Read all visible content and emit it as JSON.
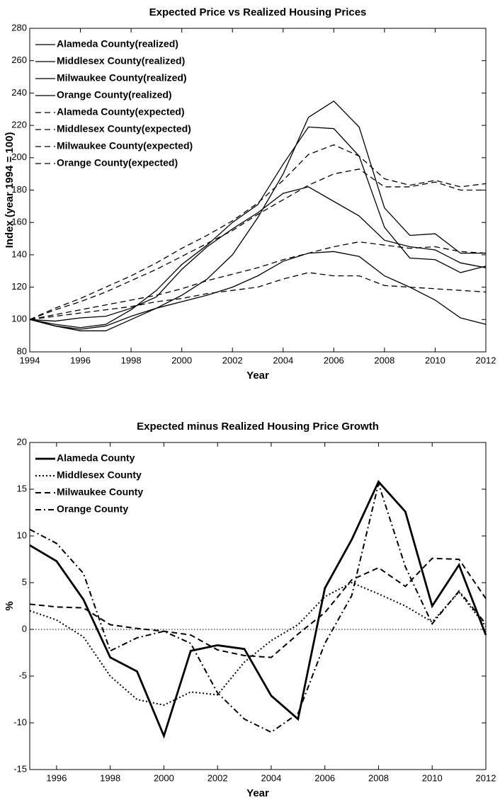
{
  "chart_data": [
    {
      "type": "line",
      "title": "Expected Price vs Realized Housing Prices",
      "xlabel": "Year",
      "ylabel": "Index (year 1994 = 100)",
      "x": [
        1994,
        1995,
        1996,
        1997,
        1998,
        1999,
        2000,
        2001,
        2002,
        2003,
        2004,
        2005,
        2006,
        2007,
        2008,
        2009,
        2010,
        2011,
        2012
      ],
      "xlim": [
        1994,
        2012
      ],
      "xticks": [
        1994,
        1996,
        1998,
        2000,
        2002,
        2004,
        2006,
        2008,
        2010,
        2012
      ],
      "ylim": [
        80,
        280
      ],
      "yticks": [
        80,
        100,
        120,
        140,
        160,
        180,
        200,
        220,
        240,
        260,
        280
      ],
      "legend": "upper left",
      "series": [
        {
          "name": "Alameda County(realized)",
          "color": "#000000",
          "dash": "solid",
          "values": [
            100,
            97,
            95,
            97,
            106,
            118,
            134,
            146,
            160,
            171,
            196,
            219,
            218,
            201,
            157,
            138,
            137,
            129,
            133
          ]
        },
        {
          "name": "Middlesex County(realized)",
          "color": "#000000",
          "dash": "solid",
          "values": [
            100,
            99,
            101,
            102,
            107,
            114,
            131,
            145,
            156,
            166,
            178,
            182,
            173,
            164,
            149,
            145,
            143,
            135,
            132
          ]
        },
        {
          "name": "Milwaukee County(realized)",
          "color": "#000000",
          "dash": "solid",
          "values": [
            100,
            96,
            94,
            96,
            102,
            107,
            111,
            115,
            120,
            127,
            136,
            141,
            142,
            139,
            127,
            120,
            112,
            101,
            97
          ]
        },
        {
          "name": "Orange County(realized)",
          "color": "#000000",
          "dash": "solid",
          "values": [
            100,
            96,
            93,
            93,
            100,
            107,
            115,
            125,
            140,
            163,
            190,
            225,
            235,
            219,
            169,
            152,
            153,
            141,
            141
          ]
        },
        {
          "name": "Alameda County(expected)",
          "color": "#000000",
          "dash": "dashed",
          "values": [
            100,
            107,
            113,
            120,
            127,
            135,
            144,
            152,
            161,
            172,
            186,
            202,
            208,
            201,
            187,
            183,
            186,
            182,
            184
          ]
        },
        {
          "name": "Middlesex County(expected)",
          "color": "#000000",
          "dash": "dashed",
          "values": [
            100,
            103,
            106,
            109,
            112,
            115,
            119,
            124,
            128,
            132,
            137,
            141,
            145,
            148,
            146,
            144,
            145,
            142,
            141
          ]
        },
        {
          "name": "Milwaukee County(expected)",
          "color": "#000000",
          "dash": "dashed",
          "values": [
            100,
            102,
            104,
            106,
            108,
            111,
            113,
            116,
            118,
            120,
            125,
            129,
            127,
            127,
            121,
            120,
            119,
            118,
            117
          ]
        },
        {
          "name": "Orange County(expected)",
          "color": "#000000",
          "dash": "dashed",
          "values": [
            100,
            106,
            111,
            117,
            124,
            131,
            139,
            147,
            155,
            165,
            174,
            183,
            190,
            193,
            182,
            182,
            185,
            180,
            180
          ]
        }
      ]
    },
    {
      "type": "line",
      "title": "Expected minus Realized Housing Price Growth",
      "xlabel": "Year",
      "ylabel": "%",
      "x": [
        1995,
        1996,
        1997,
        1998,
        1999,
        2000,
        2001,
        2002,
        2003,
        2004,
        2005,
        2006,
        2007,
        2008,
        2009,
        2010,
        2011,
        2012
      ],
      "xlim": [
        1995,
        2012
      ],
      "xticks": [
        1996,
        1998,
        2000,
        2002,
        2004,
        2006,
        2008,
        2010,
        2012
      ],
      "ylim": [
        -15,
        20
      ],
      "yticks": [
        -15,
        -10,
        -5,
        0,
        5,
        10,
        15,
        20
      ],
      "reference_line": 0,
      "legend": "upper left",
      "series": [
        {
          "name": "Alameda County",
          "color": "#000000",
          "dash": "solid",
          "values": [
            9,
            7.3,
            3.2,
            -3,
            -4.5,
            -11.4,
            -2.3,
            -1.7,
            -2.1,
            -7.1,
            -9.6,
            4.4,
            9.6,
            15.8,
            12.6,
            2.5,
            6.9,
            -0.6
          ]
        },
        {
          "name": "Middlesex County",
          "color": "#000000",
          "dash": "dotted",
          "values": [
            2,
            1,
            -0.8,
            -5,
            -7.5,
            -8.1,
            -6.7,
            -7,
            -3.5,
            -1.2,
            0.5,
            3.5,
            5,
            3.8,
            2.5,
            0.8,
            4,
            0.3
          ]
        },
        {
          "name": "Milwaukee County",
          "color": "#000000",
          "dash": "dashed",
          "values": [
            2.7,
            2.4,
            2.3,
            0.5,
            0.1,
            -0.2,
            -0.6,
            -2.2,
            -2.8,
            -3,
            -0.5,
            1.8,
            5.3,
            6.6,
            4.6,
            7.6,
            7.5,
            3.3
          ]
        },
        {
          "name": "Orange County",
          "color": "#000000",
          "dash": "dashdot",
          "values": [
            10.7,
            9.2,
            6,
            -2.3,
            -0.9,
            -0.2,
            -1.5,
            -6.8,
            -9.6,
            -11,
            -9,
            -1.5,
            3.6,
            15.6,
            6.7,
            0.6,
            4.1,
            0.6
          ]
        }
      ]
    }
  ]
}
